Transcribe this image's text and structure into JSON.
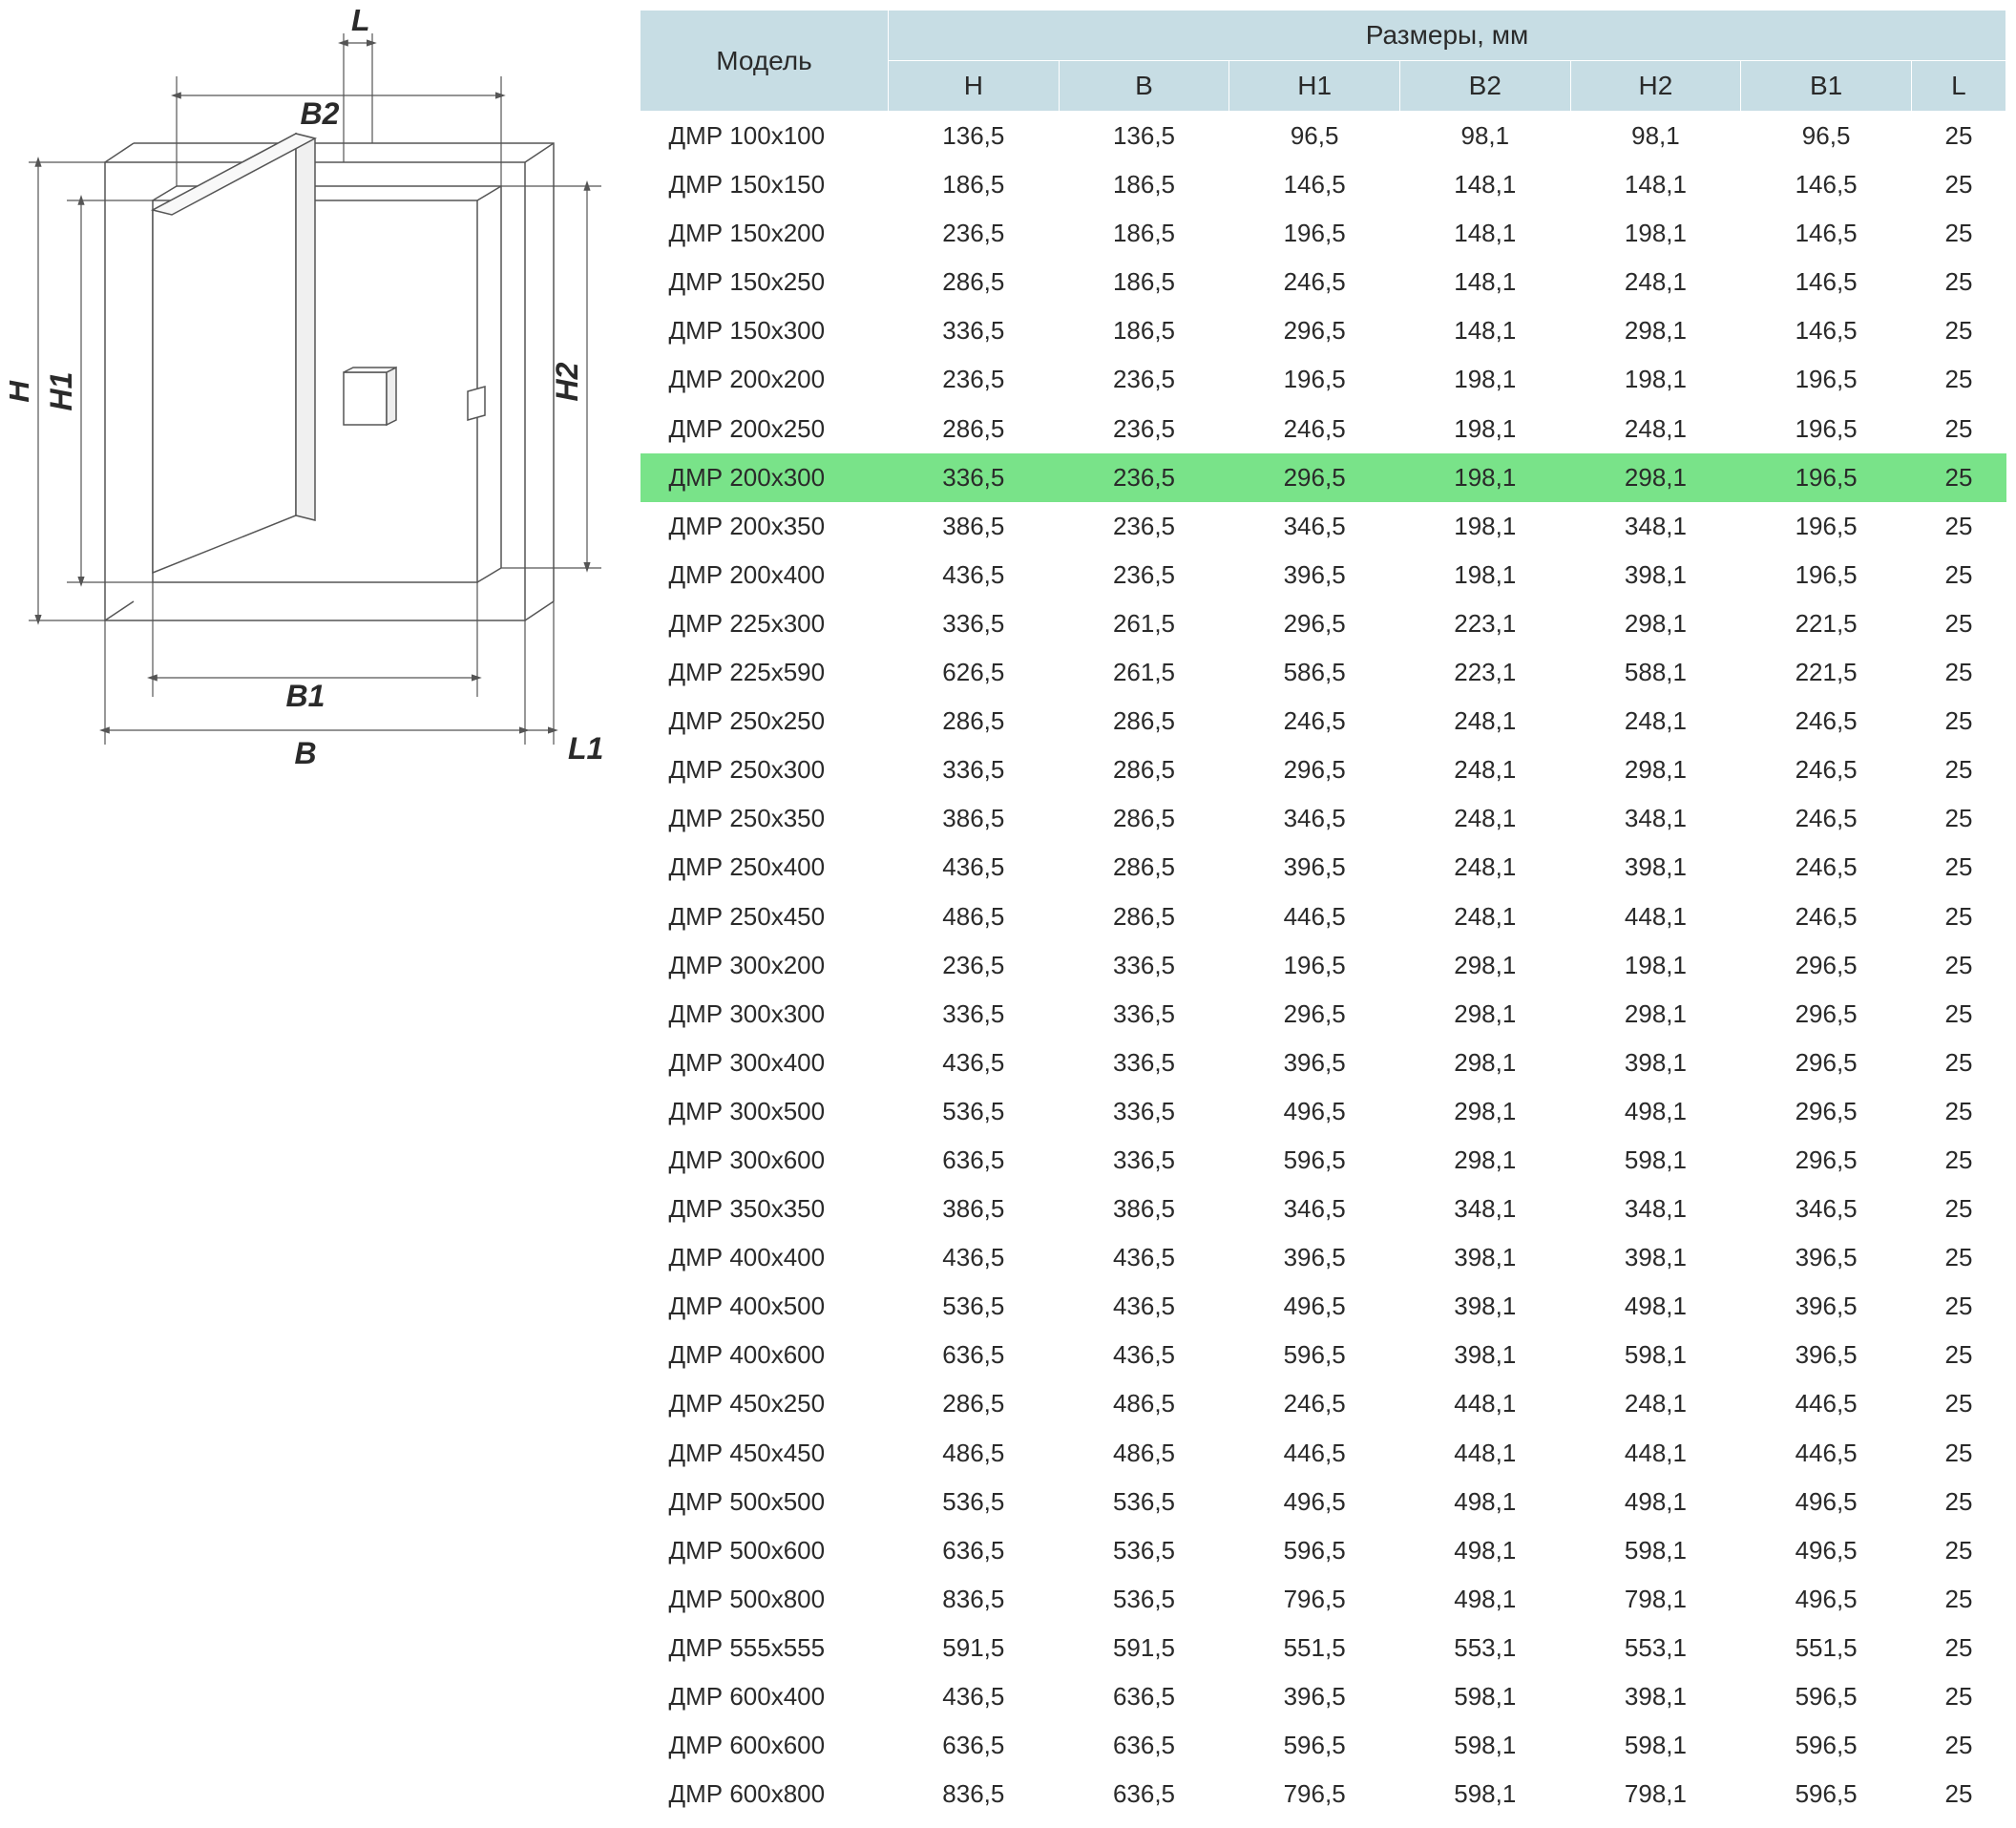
{
  "diagram": {
    "labels": {
      "H": "H",
      "H1": "H1",
      "H2": "H2",
      "B": "B",
      "B1": "B1",
      "B2": "B2",
      "L": "L",
      "L1": "L1"
    },
    "stroke_color": "#555555",
    "stroke_width": 1.5,
    "label_fontsize": 32,
    "label_color": "#2a2a2a"
  },
  "table": {
    "header_bg": "#c7dde4",
    "header_border": "#ffffff",
    "highlight_bg": "#79e389",
    "text_color": "#2a2a2a",
    "fontsize_header": 28,
    "fontsize_body": 26,
    "model_header": "Модель",
    "dims_header": "Размеры, мм",
    "columns": [
      "H",
      "B",
      "H1",
      "B2",
      "H2",
      "B1",
      "L"
    ],
    "highlighted_row_index": 7,
    "rows": [
      {
        "model": "ДМР 100x100",
        "H": "136,5",
        "B": "136,5",
        "H1": "96,5",
        "B2": "98,1",
        "H2": "98,1",
        "B1": "96,5",
        "L": "25"
      },
      {
        "model": "ДМР 150x150",
        "H": "186,5",
        "B": "186,5",
        "H1": "146,5",
        "B2": "148,1",
        "H2": "148,1",
        "B1": "146,5",
        "L": "25"
      },
      {
        "model": "ДМР 150x200",
        "H": "236,5",
        "B": "186,5",
        "H1": "196,5",
        "B2": "148,1",
        "H2": "198,1",
        "B1": "146,5",
        "L": "25"
      },
      {
        "model": "ДМР 150x250",
        "H": "286,5",
        "B": "186,5",
        "H1": "246,5",
        "B2": "148,1",
        "H2": "248,1",
        "B1": "146,5",
        "L": "25"
      },
      {
        "model": "ДМР 150x300",
        "H": "336,5",
        "B": "186,5",
        "H1": "296,5",
        "B2": "148,1",
        "H2": "298,1",
        "B1": "146,5",
        "L": "25"
      },
      {
        "model": "ДМР 200x200",
        "H": "236,5",
        "B": "236,5",
        "H1": "196,5",
        "B2": "198,1",
        "H2": "198,1",
        "B1": "196,5",
        "L": "25"
      },
      {
        "model": "ДМР 200x250",
        "H": "286,5",
        "B": "236,5",
        "H1": "246,5",
        "B2": "198,1",
        "H2": "248,1",
        "B1": "196,5",
        "L": "25"
      },
      {
        "model": "ДМР 200x300",
        "H": "336,5",
        "B": "236,5",
        "H1": "296,5",
        "B2": "198,1",
        "H2": "298,1",
        "B1": "196,5",
        "L": "25"
      },
      {
        "model": "ДМР 200x350",
        "H": "386,5",
        "B": "236,5",
        "H1": "346,5",
        "B2": "198,1",
        "H2": "348,1",
        "B1": "196,5",
        "L": "25"
      },
      {
        "model": "ДМР 200x400",
        "H": "436,5",
        "B": "236,5",
        "H1": "396,5",
        "B2": "198,1",
        "H2": "398,1",
        "B1": "196,5",
        "L": "25"
      },
      {
        "model": "ДМР 225x300",
        "H": "336,5",
        "B": "261,5",
        "H1": "296,5",
        "B2": "223,1",
        "H2": "298,1",
        "B1": "221,5",
        "L": "25"
      },
      {
        "model": "ДМР 225x590",
        "H": "626,5",
        "B": "261,5",
        "H1": "586,5",
        "B2": "223,1",
        "H2": "588,1",
        "B1": "221,5",
        "L": "25"
      },
      {
        "model": "ДМР 250x250",
        "H": "286,5",
        "B": "286,5",
        "H1": "246,5",
        "B2": "248,1",
        "H2": "248,1",
        "B1": "246,5",
        "L": "25"
      },
      {
        "model": "ДМР 250x300",
        "H": "336,5",
        "B": "286,5",
        "H1": "296,5",
        "B2": "248,1",
        "H2": "298,1",
        "B1": "246,5",
        "L": "25"
      },
      {
        "model": "ДМР 250x350",
        "H": "386,5",
        "B": "286,5",
        "H1": "346,5",
        "B2": "248,1",
        "H2": "348,1",
        "B1": "246,5",
        "L": "25"
      },
      {
        "model": "ДМР 250x400",
        "H": "436,5",
        "B": "286,5",
        "H1": "396,5",
        "B2": "248,1",
        "H2": "398,1",
        "B1": "246,5",
        "L": "25"
      },
      {
        "model": "ДМР 250x450",
        "H": "486,5",
        "B": "286,5",
        "H1": "446,5",
        "B2": "248,1",
        "H2": "448,1",
        "B1": "246,5",
        "L": "25"
      },
      {
        "model": "ДМР 300x200",
        "H": "236,5",
        "B": "336,5",
        "H1": "196,5",
        "B2": "298,1",
        "H2": "198,1",
        "B1": "296,5",
        "L": "25"
      },
      {
        "model": "ДМР 300x300",
        "H": "336,5",
        "B": "336,5",
        "H1": "296,5",
        "B2": "298,1",
        "H2": "298,1",
        "B1": "296,5",
        "L": "25"
      },
      {
        "model": "ДМР 300x400",
        "H": "436,5",
        "B": "336,5",
        "H1": "396,5",
        "B2": "298,1",
        "H2": "398,1",
        "B1": "296,5",
        "L": "25"
      },
      {
        "model": "ДМР 300x500",
        "H": "536,5",
        "B": "336,5",
        "H1": "496,5",
        "B2": "298,1",
        "H2": "498,1",
        "B1": "296,5",
        "L": "25"
      },
      {
        "model": "ДМР 300x600",
        "H": "636,5",
        "B": "336,5",
        "H1": "596,5",
        "B2": "298,1",
        "H2": "598,1",
        "B1": "296,5",
        "L": "25"
      },
      {
        "model": "ДМР 350x350",
        "H": "386,5",
        "B": "386,5",
        "H1": "346,5",
        "B2": "348,1",
        "H2": "348,1",
        "B1": "346,5",
        "L": "25"
      },
      {
        "model": "ДМР 400x400",
        "H": "436,5",
        "B": "436,5",
        "H1": "396,5",
        "B2": "398,1",
        "H2": "398,1",
        "B1": "396,5",
        "L": "25"
      },
      {
        "model": "ДМР 400x500",
        "H": "536,5",
        "B": "436,5",
        "H1": "496,5",
        "B2": "398,1",
        "H2": "498,1",
        "B1": "396,5",
        "L": "25"
      },
      {
        "model": "ДМР 400x600",
        "H": "636,5",
        "B": "436,5",
        "H1": "596,5",
        "B2": "398,1",
        "H2": "598,1",
        "B1": "396,5",
        "L": "25"
      },
      {
        "model": "ДМР 450x250",
        "H": "286,5",
        "B": "486,5",
        "H1": "246,5",
        "B2": "448,1",
        "H2": "248,1",
        "B1": "446,5",
        "L": "25"
      },
      {
        "model": "ДМР 450x450",
        "H": "486,5",
        "B": "486,5",
        "H1": "446,5",
        "B2": "448,1",
        "H2": "448,1",
        "B1": "446,5",
        "L": "25"
      },
      {
        "model": "ДМР 500x500",
        "H": "536,5",
        "B": "536,5",
        "H1": "496,5",
        "B2": "498,1",
        "H2": "498,1",
        "B1": "496,5",
        "L": "25"
      },
      {
        "model": "ДМР 500x600",
        "H": "636,5",
        "B": "536,5",
        "H1": "596,5",
        "B2": "498,1",
        "H2": "598,1",
        "B1": "496,5",
        "L": "25"
      },
      {
        "model": "ДМР 500x800",
        "H": "836,5",
        "B": "536,5",
        "H1": "796,5",
        "B2": "498,1",
        "H2": "798,1",
        "B1": "496,5",
        "L": "25"
      },
      {
        "model": "ДМР 555x555",
        "H": "591,5",
        "B": "591,5",
        "H1": "551,5",
        "B2": "553,1",
        "H2": "553,1",
        "B1": "551,5",
        "L": "25"
      },
      {
        "model": "ДМР 600x400",
        "H": "436,5",
        "B": "636,5",
        "H1": "396,5",
        "B2": "598,1",
        "H2": "398,1",
        "B1": "596,5",
        "L": "25"
      },
      {
        "model": "ДМР 600x600",
        "H": "636,5",
        "B": "636,5",
        "H1": "596,5",
        "B2": "598,1",
        "H2": "598,1",
        "B1": "596,5",
        "L": "25"
      },
      {
        "model": "ДМР 600x800",
        "H": "836,5",
        "B": "636,5",
        "H1": "796,5",
        "B2": "598,1",
        "H2": "798,1",
        "B1": "596,5",
        "L": "25"
      }
    ]
  }
}
